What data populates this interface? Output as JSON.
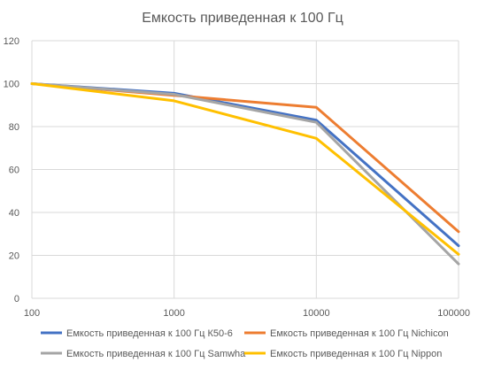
{
  "chart_data": {
    "type": "line",
    "title": "Емкость приведенная к 100 Гц",
    "x_scale": "log",
    "x": [
      100,
      1000,
      10000,
      100000
    ],
    "x_tick_labels": [
      "100",
      "1000",
      "10000",
      "100000"
    ],
    "y_ticks": [
      0,
      20,
      40,
      60,
      80,
      100,
      120
    ],
    "ylim": [
      0,
      120
    ],
    "xlim": [
      100,
      100000
    ],
    "grid": true,
    "legend_position": "bottom",
    "series": [
      {
        "name": "Емкость приведенная к 100 Гц К50-6",
        "color": "#4472c4",
        "values": [
          100,
          95.5,
          83,
          24.5
        ]
      },
      {
        "name": "Емкость приведенная к 100 Гц Nichicon",
        "color": "#ed7d31",
        "values": [
          100,
          94.5,
          89,
          31
        ]
      },
      {
        "name": "Емкость приведенная к 100 Гц Samwha",
        "color": "#a5a5a5",
        "values": [
          100,
          95,
          82,
          16
        ]
      },
      {
        "name": "Емкость приведенная к 100 Гц Nippon",
        "color": "#ffc000",
        "values": [
          100,
          92,
          74.5,
          20.5
        ]
      }
    ]
  }
}
